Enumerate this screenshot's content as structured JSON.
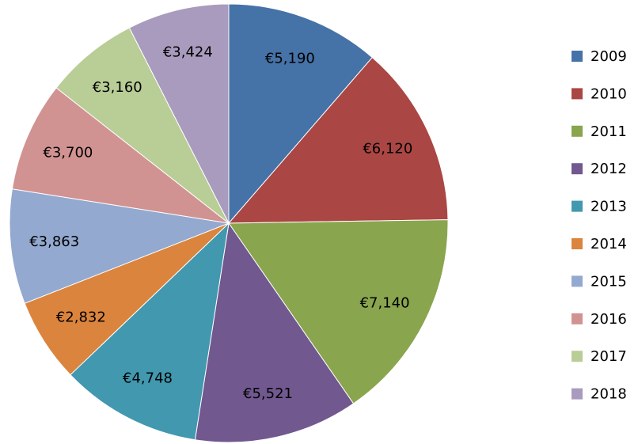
{
  "chart_data": {
    "type": "pie",
    "categories": [
      "2009",
      "2010",
      "2011",
      "2012",
      "2013",
      "2014",
      "2015",
      "2016",
      "2017",
      "2018"
    ],
    "values": [
      5190,
      6120,
      7140,
      5521,
      4748,
      2832,
      3863,
      3700,
      3160,
      3424
    ],
    "value_labels": [
      "€5,190",
      "€6,120",
      "€7,140",
      "€5,521",
      "€4,748",
      "€2,832",
      "€3,863",
      "€3,700",
      "€3,160",
      "€3,424"
    ],
    "colors": [
      "#4572a7",
      "#aa4643",
      "#89a54e",
      "#71588f",
      "#4198af",
      "#db843d",
      "#93a9cf",
      "#d19392",
      "#b9cd96",
      "#a99bbd"
    ],
    "legend": "right"
  }
}
